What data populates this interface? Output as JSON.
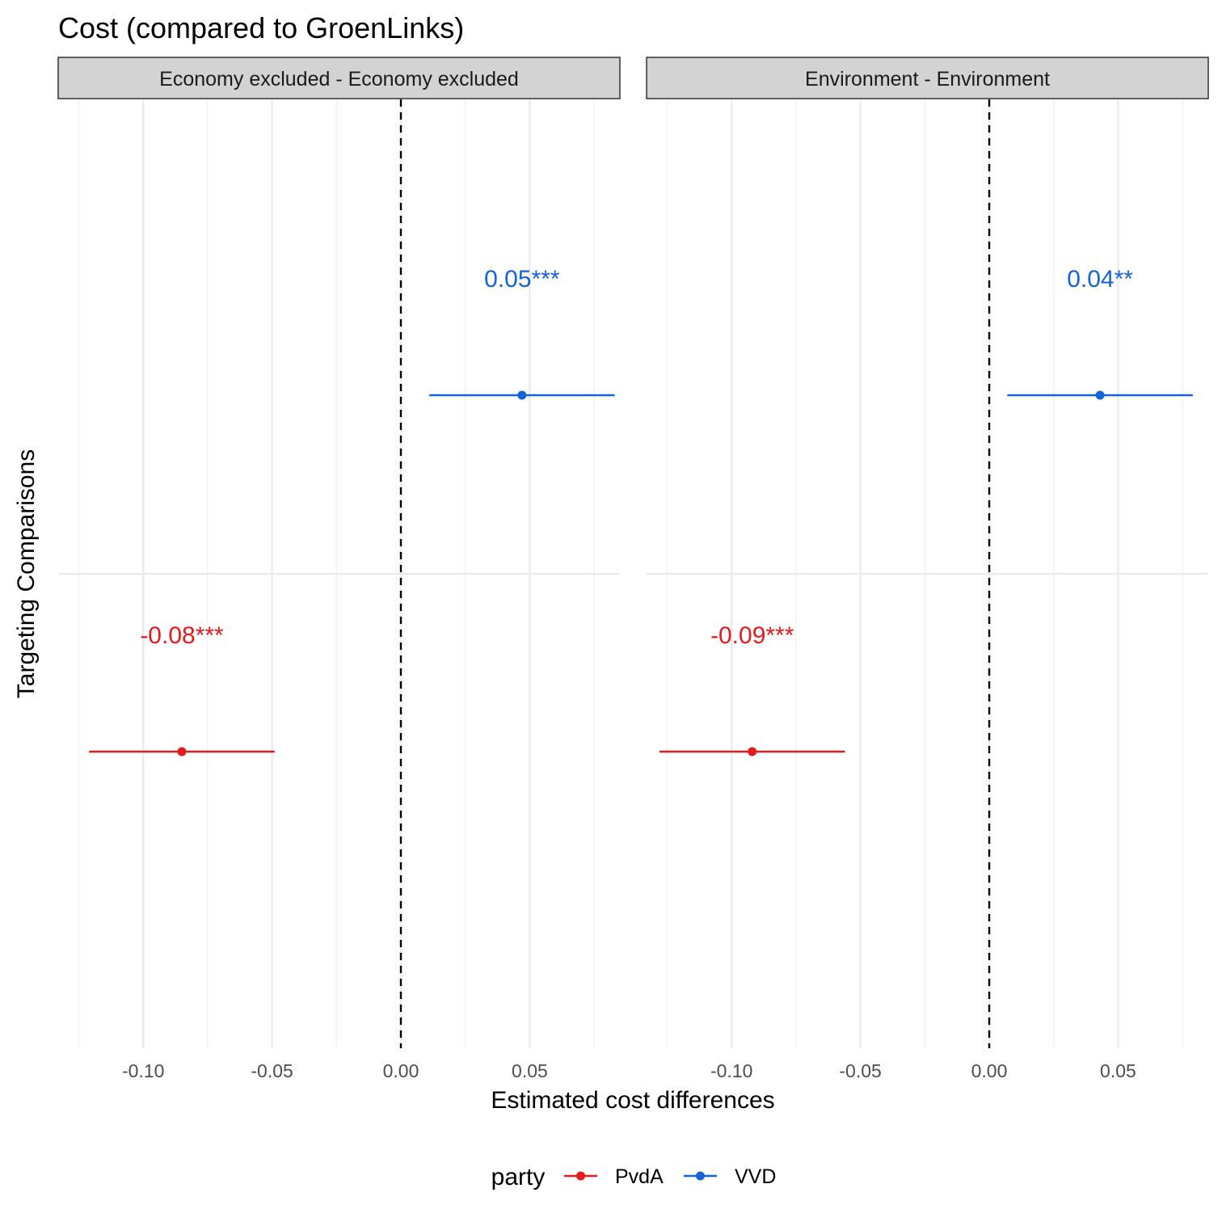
{
  "chart_data": {
    "type": "errorbar",
    "title": "Cost (compared to GroenLinks)",
    "xlabel": "Estimated cost differences",
    "ylabel": "Targeting Comparisons",
    "xlim": [
      -0.133,
      0.085
    ],
    "x_ticks": [
      -0.1,
      -0.05,
      0.0,
      0.05
    ],
    "x_tick_labels": [
      "-0.10",
      "-0.05",
      "0.00",
      "0.05"
    ],
    "reference_line": {
      "x": 0,
      "style": "dashed"
    },
    "grid": true,
    "legend": {
      "title": "party",
      "position": "bottom",
      "entries": [
        {
          "name": "PvdA",
          "color": "#e41a1c"
        },
        {
          "name": "VVD",
          "color": "#1463d8"
        }
      ]
    },
    "panels": [
      {
        "strip": "Economy excluded  - Economy excluded",
        "series": [
          {
            "name": "PvdA",
            "color": "#e41a1c",
            "estimate": -0.085,
            "ci_low": -0.121,
            "ci_high": -0.049,
            "label": "-0.08***"
          },
          {
            "name": "VVD",
            "color": "#1463d8",
            "estimate": 0.047,
            "ci_low": 0.011,
            "ci_high": 0.083,
            "label": "0.05***"
          }
        ]
      },
      {
        "strip": "Environment  - Environment",
        "series": [
          {
            "name": "PvdA",
            "color": "#e41a1c",
            "estimate": -0.092,
            "ci_low": -0.128,
            "ci_high": -0.056,
            "label": "-0.09***"
          },
          {
            "name": "VVD",
            "color": "#1463d8",
            "estimate": 0.043,
            "ci_low": 0.007,
            "ci_high": 0.079,
            "label": "0.04**"
          }
        ]
      }
    ]
  }
}
